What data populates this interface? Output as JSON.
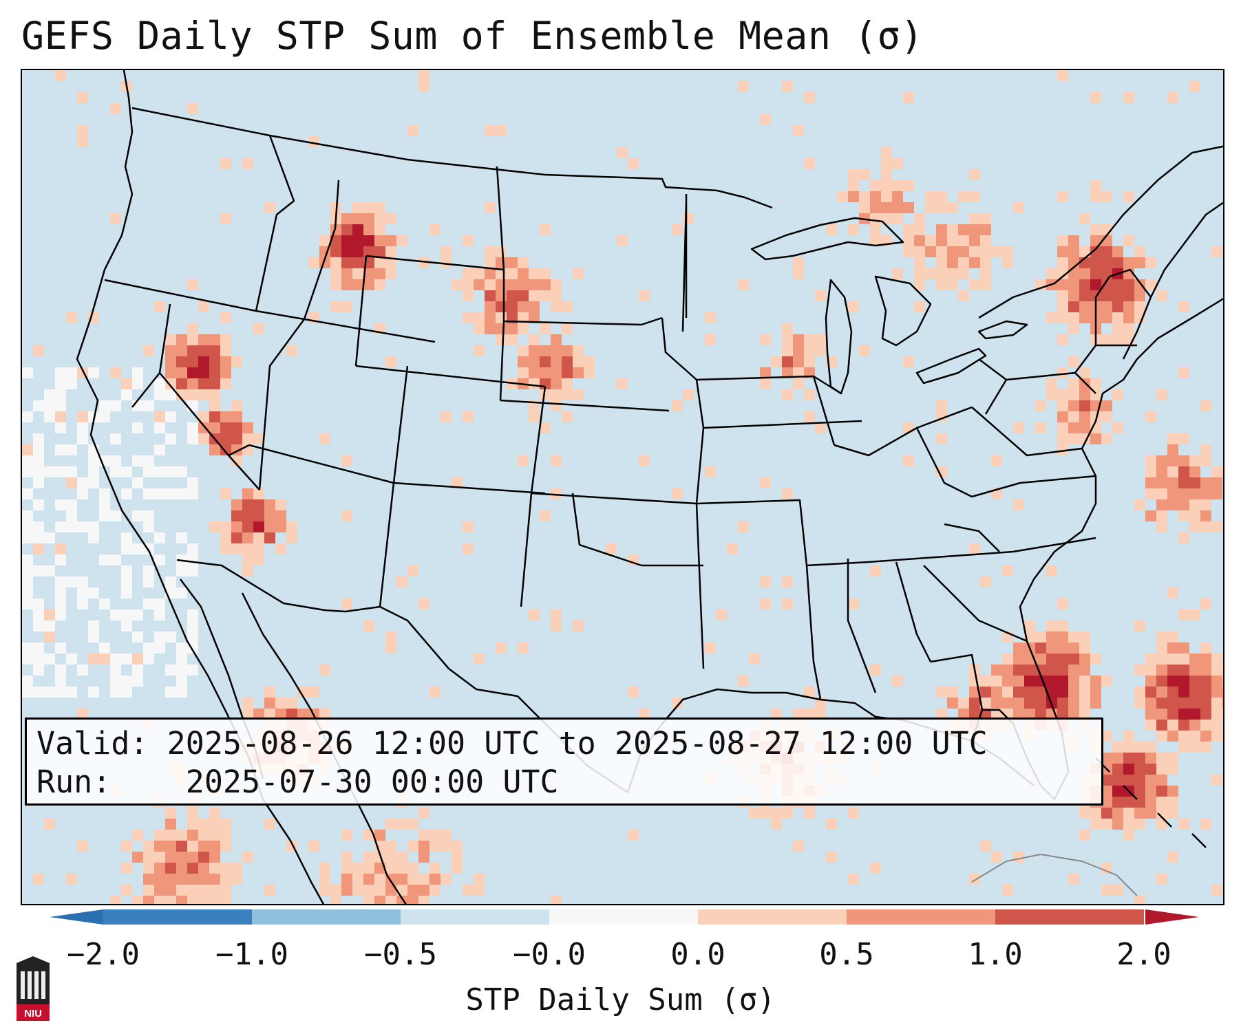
{
  "title": "GEFS Daily STP Sum of Ensemble Mean (σ)",
  "info": {
    "valid_label": "Valid:",
    "valid_value": "2025-08-26 12:00 UTC to 2025-08-27 12:00 UTC",
    "run_label": "Run:",
    "run_value": "2025-07-30 00:00 UTC"
  },
  "colorbar": {
    "label": "STP Daily Sum (σ)",
    "ticks": [
      "−2.0",
      "−1.0",
      "−0.5",
      "−0.0",
      "0.0",
      "0.5",
      "1.0",
      "2.0"
    ],
    "bin_colors": [
      "#3a7fbe",
      "#8fc0de",
      "#cfe3ef",
      "#f7f7f7",
      "#fbd0b8",
      "#f0967a",
      "#d0554b"
    ],
    "under_color": "#2b6fb0",
    "over_color": "#b2182b"
  },
  "map": {
    "background_color": "#cfe3ef",
    "extend_min_color": "#2b6fb0",
    "extend_max_color": "#b2182b"
  },
  "logo": {
    "text": "NIU"
  }
}
